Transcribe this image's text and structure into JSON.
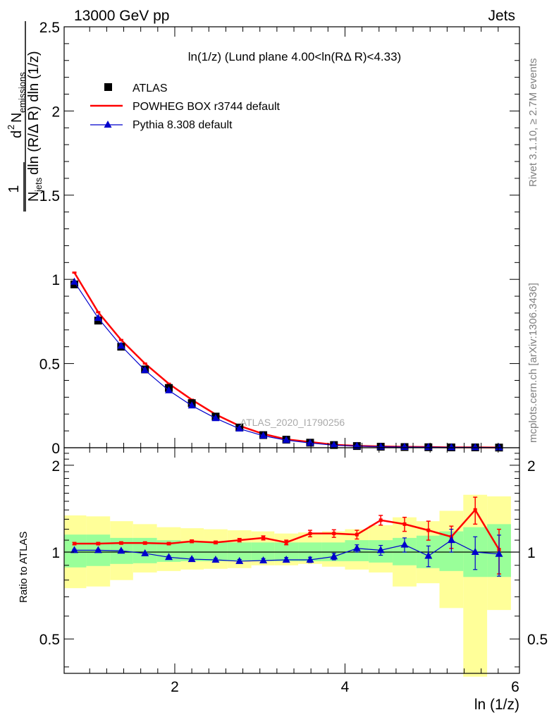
{
  "header": {
    "left": "13000 GeV pp",
    "right": "Jets"
  },
  "side": {
    "rivet": "Rivet 3.1.10, ≥ 2.7M events",
    "mcplots": "mcplots.cern.ch [arXiv:1306.3436]"
  },
  "watermark": "ATLAS_2020_I1790256",
  "colors": {
    "atlas": "#000000",
    "powheg": "#ff0000",
    "pythia": "#0000cc",
    "band_inner": "#99ff99",
    "band_outer": "#ffff99"
  },
  "chart_data": [
    {
      "type": "line",
      "title": "ln(1/z) (Lund plane 4.00<ln(RΔ R)<4.33)",
      "ylabel": "1/N_jets d²N_emissions / dln(R/ΔR) dln(1/z)",
      "xlim": [
        0.7,
        6.05
      ],
      "ylim": [
        0,
        2.5
      ],
      "yticks": [
        "0",
        "0.5",
        "1",
        "1.5",
        "2",
        "2.5"
      ],
      "legend_position": "top-left",
      "x": [
        0.82,
        1.1,
        1.37,
        1.65,
        1.93,
        2.2,
        2.48,
        2.76,
        3.04,
        3.31,
        3.59,
        3.87,
        4.14,
        4.42,
        4.7,
        4.98,
        5.25,
        5.53,
        5.81
      ],
      "series": [
        {
          "name": "ATLAS",
          "marker": "square",
          "values": [
            0.97,
            0.755,
            0.6,
            0.465,
            0.355,
            0.265,
            0.185,
            0.12,
            0.075,
            0.048,
            0.03,
            0.016,
            0.01,
            0.006,
            0.004,
            0.003,
            0.002,
            0.002,
            0.001
          ]
        },
        {
          "name": "POWHEG BOX r3744 default",
          "marker": "line",
          "values": [
            1.04,
            0.805,
            0.64,
            0.5,
            0.38,
            0.285,
            0.198,
            0.13,
            0.082,
            0.05,
            0.034,
            0.018,
            0.011,
            0.008,
            0.005,
            0.004,
            0.002,
            0.002,
            0.001
          ]
        },
        {
          "name": "Pythia 8.308 default",
          "marker": "triangle",
          "values": [
            0.985,
            0.77,
            0.605,
            0.46,
            0.34,
            0.25,
            0.175,
            0.113,
            0.071,
            0.045,
            0.028,
            0.015,
            0.01,
            0.006,
            0.004,
            0.003,
            0.002,
            0.002,
            0.001
          ]
        }
      ]
    },
    {
      "type": "line",
      "title": "",
      "xlabel": "ln (1/z)",
      "ylabel": "Ratio to ATLAS",
      "xlim": [
        0.7,
        6.05
      ],
      "ylim": [
        0.38,
        2.3
      ],
      "xticks": [
        "2",
        "4",
        "6"
      ],
      "yticks": [
        "0.5",
        "1",
        "2"
      ],
      "bin_edges": [
        0.68,
        0.96,
        1.24,
        1.51,
        1.79,
        2.07,
        2.34,
        2.62,
        2.9,
        3.17,
        3.45,
        3.73,
        4.0,
        4.28,
        4.56,
        4.84,
        5.11,
        5.39,
        5.67,
        5.95
      ],
      "x": [
        0.82,
        1.1,
        1.37,
        1.65,
        1.93,
        2.2,
        2.48,
        2.76,
        3.04,
        3.31,
        3.59,
        3.87,
        4.14,
        4.42,
        4.7,
        4.98,
        5.25,
        5.53,
        5.81
      ],
      "band_inner": {
        "low": [
          0.885,
          0.895,
          0.91,
          0.915,
          0.925,
          0.93,
          0.93,
          0.93,
          0.93,
          0.93,
          0.93,
          0.93,
          0.93,
          0.92,
          0.9,
          0.88,
          0.86,
          0.82,
          0.82
        ],
        "high": [
          1.15,
          1.15,
          1.12,
          1.12,
          1.1,
          1.09,
          1.09,
          1.08,
          1.08,
          1.08,
          1.08,
          1.08,
          1.1,
          1.1,
          1.12,
          1.14,
          1.18,
          1.22,
          1.25
        ]
      },
      "band_outer": {
        "low": [
          0.75,
          0.76,
          0.8,
          0.85,
          0.86,
          0.87,
          0.875,
          0.88,
          0.9,
          0.9,
          0.91,
          0.89,
          0.87,
          0.85,
          0.76,
          0.78,
          0.64,
          0.37,
          0.63
        ]
      },
      "band_outer_high": [
        1.34,
        1.33,
        1.28,
        1.25,
        1.22,
        1.21,
        1.2,
        1.19,
        1.18,
        1.16,
        1.17,
        1.18,
        1.2,
        1.24,
        1.32,
        1.28,
        1.39,
        1.58,
        1.56
      ],
      "series": [
        {
          "name": "POWHEG BOX r3744 default",
          "values": [
            1.07,
            1.07,
            1.075,
            1.075,
            1.07,
            1.09,
            1.08,
            1.1,
            1.12,
            1.08,
            1.16,
            1.16,
            1.15,
            1.29,
            1.25,
            1.19,
            1.13,
            1.4,
            1.02
          ],
          "err": [
            0.01,
            0.01,
            0.01,
            0.01,
            0.01,
            0.012,
            0.012,
            0.015,
            0.018,
            0.02,
            0.03,
            0.035,
            0.04,
            0.05,
            0.07,
            0.09,
            0.1,
            0.15,
            0.18
          ]
        },
        {
          "name": "Pythia 8.308 default",
          "values": [
            1.015,
            1.015,
            1.01,
            0.99,
            0.96,
            0.945,
            0.94,
            0.93,
            0.935,
            0.94,
            0.94,
            0.965,
            1.03,
            1.015,
            1.06,
            0.97,
            1.1,
            1.0,
            0.985
          ],
          "err": [
            0.008,
            0.008,
            0.008,
            0.009,
            0.01,
            0.01,
            0.012,
            0.013,
            0.015,
            0.018,
            0.02,
            0.025,
            0.03,
            0.04,
            0.06,
            0.08,
            0.1,
            0.13,
            0.16
          ]
        }
      ]
    }
  ]
}
